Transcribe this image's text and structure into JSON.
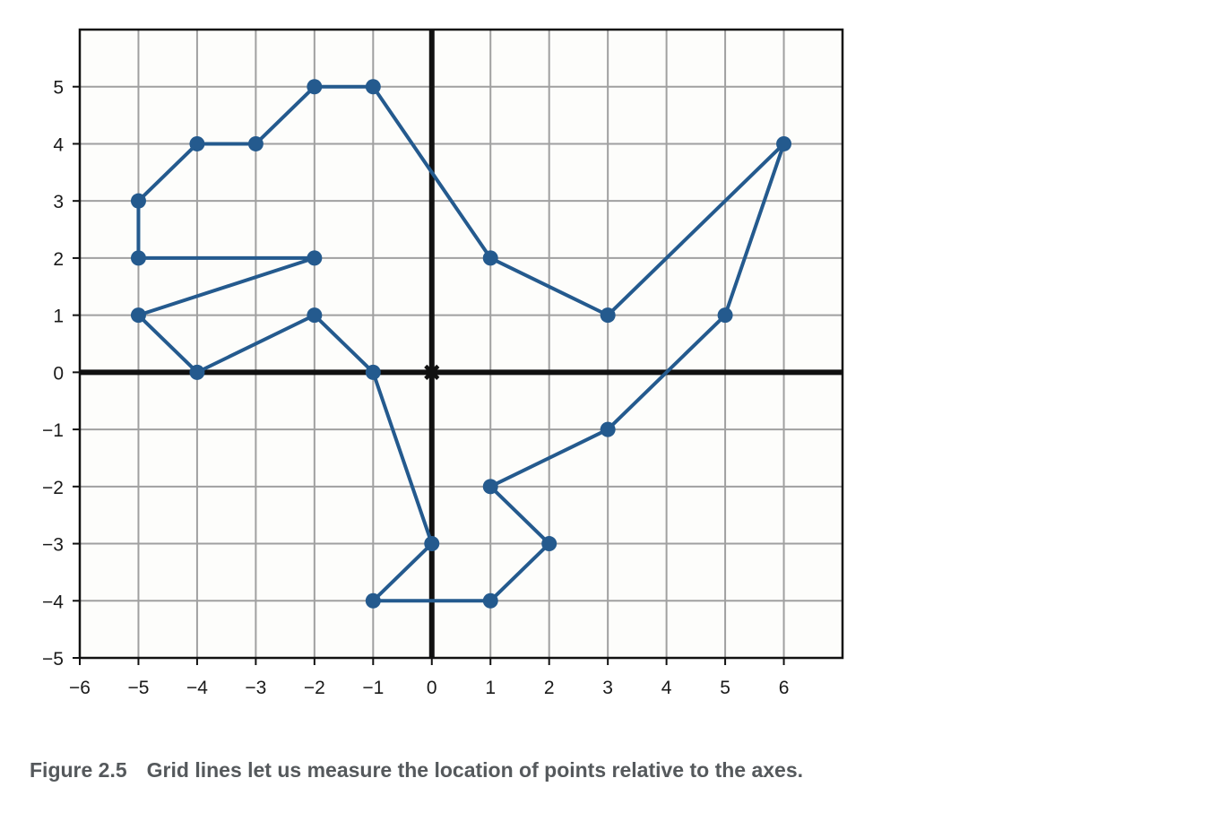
{
  "caption": {
    "figure_number": "Figure 2.5",
    "text": "Grid lines let us measure the location of points relative to the axes."
  },
  "colors": {
    "series": "#245a8e",
    "grid": "#a0a0a0",
    "axes": "#111111",
    "plot_background": "#fdfdfb",
    "caption_text": "#55595c"
  },
  "chart_data": {
    "type": "line",
    "title": "",
    "xlabel": "",
    "ylabel": "",
    "xlim": [
      -6,
      7
    ],
    "ylim": [
      -5,
      6
    ],
    "xticks": [
      -6,
      -5,
      -4,
      -3,
      -2,
      -1,
      0,
      1,
      2,
      3,
      4,
      5,
      6
    ],
    "yticks": [
      -5,
      -4,
      -3,
      -2,
      -1,
      0,
      1,
      2,
      3,
      4,
      5
    ],
    "xtick_labels": [
      "−6",
      "−5",
      "−4",
      "−3",
      "−2",
      "−1",
      "0",
      "1",
      "2",
      "3",
      "4",
      "5",
      "6"
    ],
    "ytick_labels": [
      "−5",
      "−4",
      "−3",
      "−2",
      "−1",
      "0",
      "1",
      "2",
      "3",
      "4",
      "5"
    ],
    "grid": true,
    "origin_marker": [
      0,
      0
    ],
    "series": [
      {
        "closed": true,
        "points": [
          [
            6,
            4
          ],
          [
            3,
            1
          ],
          [
            1,
            2
          ],
          [
            -1,
            5
          ],
          [
            -2,
            5
          ],
          [
            -3,
            4
          ],
          [
            -4,
            4
          ],
          [
            -5,
            3
          ],
          [
            -5,
            2
          ],
          [
            -2,
            2
          ],
          [
            -5,
            1
          ],
          [
            -4,
            0
          ],
          [
            -2,
            1
          ],
          [
            -1,
            0
          ],
          [
            0,
            -3
          ],
          [
            -1,
            -4
          ],
          [
            1,
            -4
          ],
          [
            2,
            -3
          ],
          [
            1,
            -2
          ],
          [
            3,
            -1
          ],
          [
            5,
            1
          ]
        ]
      }
    ]
  }
}
